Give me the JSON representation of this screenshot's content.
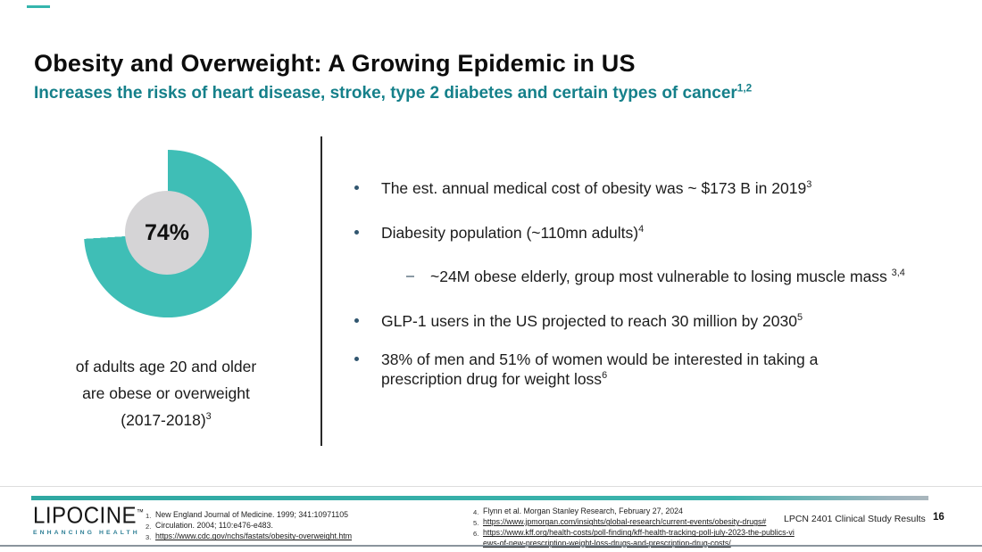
{
  "colors": {
    "donut_teal": "#3fbeb6",
    "donut_center_gray": "#d5d4d6",
    "heading_teal": "#15808a",
    "footer_bar_teal": "#2fa8a2",
    "logo_tagline_teal": "#2e7f96",
    "bullet_dot": "#31566f"
  },
  "header": {
    "title": "Obesity and Overweight: A Growing Epidemic in US",
    "subtitle": "Increases the risks of heart disease, stroke, type 2 diabetes and certain types of cancer",
    "subtitle_sup": "1,2"
  },
  "chart_data": {
    "type": "pie",
    "subtype": "donut",
    "values": [
      74,
      26
    ],
    "labels": [
      "adults age 20 and older obese or overweight (2017-2018)",
      "remainder"
    ],
    "colors": [
      "#3fbeb6",
      "#ffffff"
    ],
    "center_label": "74%",
    "start_angle_deg": 0,
    "direction": "clockwise",
    "legend": "none"
  },
  "stat": {
    "value": "74%",
    "caption_line1": "of adults age 20 and older",
    "caption_line2": "are obese or overweight",
    "caption_line3": "(2017-2018)",
    "caption_sup": "3"
  },
  "bullets": [
    {
      "level": 1,
      "text": "The est. annual medical cost of obesity was ~ $173 B in 2019",
      "sup": "3"
    },
    {
      "level": 1,
      "text": "Diabesity population (~110mn adults)",
      "sup": "4"
    },
    {
      "level": 2,
      "text": "~24M obese elderly, group most vulnerable to losing muscle mass ",
      "sup": "3,4"
    },
    {
      "level": 1,
      "text": "GLP-1 users in the US projected to reach 30 million by 2030",
      "sup": "5"
    },
    {
      "level": 1,
      "text": "38% of men and 51% of women would be interested in taking a prescription drug for weight loss",
      "sup": "6"
    }
  ],
  "footer": {
    "logo": {
      "wordmark": "LIPOCINE",
      "trademark": "™",
      "tagline": "ENHANCING HEALTH"
    },
    "refs_left": [
      {
        "num": "1.",
        "text": "New England Journal of Medicine. 1999; 341:10971105",
        "link": false
      },
      {
        "num": "2.",
        "text": "Circulation. 2004; 110:e476-e483.",
        "link": false
      },
      {
        "num": "3.",
        "text": "https://www.cdc.gov/nchs/fastats/obesity-overweight.htm",
        "link": true
      }
    ],
    "refs_right": [
      {
        "num": "4.",
        "text": "Flynn et al. Morgan Stanley Research, February 27, 2024",
        "link": false
      },
      {
        "num": "5.",
        "text": "https://www.jpmorgan.com/insights/global-research/current-events/obesity-drugs#",
        "link": true
      },
      {
        "num": "6.",
        "text": "https://www.kff.org/health-costs/poll-finding/kff-health-tracking-poll-july-2023-the-publics-views-of-new-prescription-weight-loss-drugs-and-prescription-drug-costs/",
        "link": true
      }
    ],
    "deck_label": "LPCN 2401 Clinical Study Results",
    "page_number": "16"
  }
}
